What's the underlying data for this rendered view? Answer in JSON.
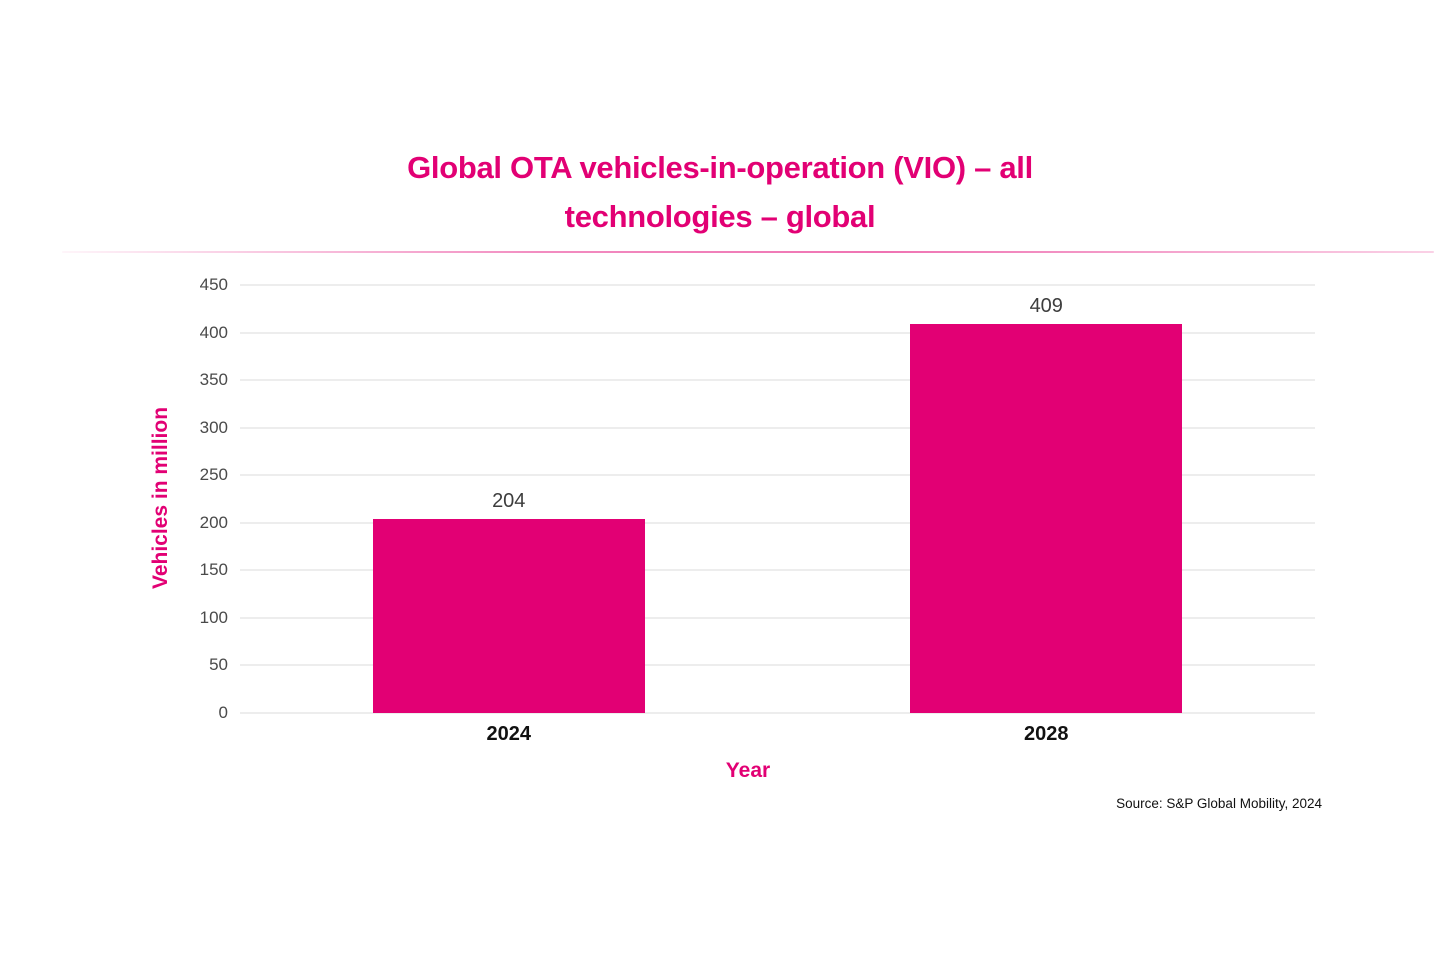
{
  "title_lines": [
    "Global OTA vehicles-in-operation (VIO) – all",
    "technologies – global"
  ],
  "source": "Source: S&P Global Mobility, 2024",
  "chart_data": {
    "type": "bar",
    "title": "Global OTA vehicles-in-operation (VIO) – all technologies – global",
    "categories": [
      "2024",
      "2028"
    ],
    "values": [
      204,
      409
    ],
    "xlabel": "Year",
    "ylabel": "Vehicles in million",
    "ylim": [
      0,
      450
    ],
    "yticks": [
      0,
      50,
      100,
      150,
      200,
      250,
      300,
      350,
      400,
      450
    ],
    "grid": true,
    "legend_position": "none",
    "bar_color": "#E20074"
  },
  "colors": {
    "accent": "#E20074",
    "tick_label": "#4a4a4a",
    "value_label": "#3d3d3d",
    "category_label": "#111111",
    "gridline": "#ededed"
  }
}
